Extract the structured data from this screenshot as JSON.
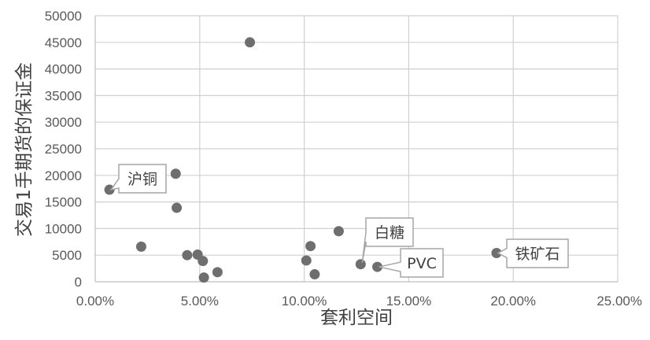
{
  "chart_data": {
    "type": "scatter",
    "xlabel": "套利空间",
    "ylabel": "交易1手期货的保证金",
    "xlim": [
      0,
      0.25
    ],
    "ylim": [
      0,
      50000
    ],
    "x_ticks": [
      "0.00%",
      "5.00%",
      "10.00%",
      "15.00%",
      "20.00%",
      "25.00%"
    ],
    "y_ticks": [
      "0",
      "5000",
      "10000",
      "15000",
      "20000",
      "25000",
      "30000",
      "35000",
      "40000",
      "45000",
      "50000"
    ],
    "grid": true,
    "points": [
      {
        "x": 0.0068,
        "y": 17300
      },
      {
        "x": 0.022,
        "y": 6600
      },
      {
        "x": 0.0385,
        "y": 20300
      },
      {
        "x": 0.039,
        "y": 13900
      },
      {
        "x": 0.044,
        "y": 5000
      },
      {
        "x": 0.049,
        "y": 5100
      },
      {
        "x": 0.0515,
        "y": 3900
      },
      {
        "x": 0.052,
        "y": 800
      },
      {
        "x": 0.0585,
        "y": 1800
      },
      {
        "x": 0.074,
        "y": 45000
      },
      {
        "x": 0.101,
        "y": 4000
      },
      {
        "x": 0.103,
        "y": 6700
      },
      {
        "x": 0.105,
        "y": 1400
      },
      {
        "x": 0.1165,
        "y": 9500
      },
      {
        "x": 0.127,
        "y": 3300
      },
      {
        "x": 0.135,
        "y": 2800
      },
      {
        "x": 0.192,
        "y": 5400
      }
    ],
    "annotations": [
      {
        "text": "沪铜",
        "x": 0.0068,
        "y": 17300
      },
      {
        "text": "白糖",
        "x": 0.127,
        "y": 3300
      },
      {
        "text": "PVC",
        "x": 0.135,
        "y": 2800
      },
      {
        "text": "铁矿石",
        "x": 0.192,
        "y": 5400
      }
    ]
  }
}
